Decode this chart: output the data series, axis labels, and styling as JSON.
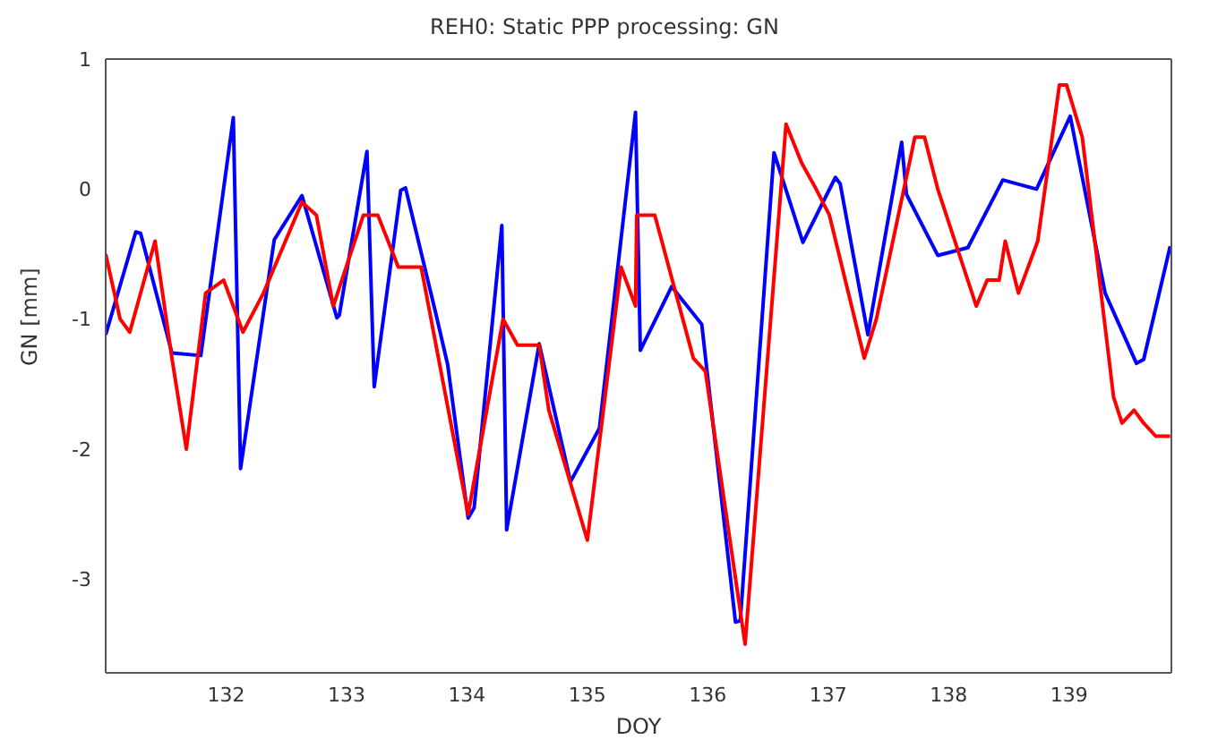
{
  "chart_data": {
    "type": "line",
    "title": "REH0: Static PPP processing: GN",
    "xlabel": "DOY",
    "ylabel": "GN [mm]",
    "xlim": [
      131,
      139.85
    ],
    "xticks": [
      132,
      133,
      134,
      135,
      136,
      137,
      138,
      139
    ],
    "ylim": [
      -3.72,
      1.0
    ],
    "yticks": [
      -3,
      -2,
      -1,
      0,
      1
    ],
    "grid": false,
    "legend": false,
    "marker": "none",
    "line_style": "solid",
    "series": [
      {
        "color": "#0000ff",
        "x": [
          131.0,
          131.25,
          131.29,
          131.55,
          131.79,
          132.06,
          132.12,
          132.4,
          132.63,
          132.92,
          132.94,
          133.17,
          133.23,
          133.45,
          133.49,
          133.74,
          133.84,
          134.01,
          134.06,
          134.29,
          134.33,
          134.6,
          134.86,
          135.1,
          135.4,
          135.44,
          135.7,
          135.95,
          136.23,
          136.27,
          136.55,
          136.79,
          137.06,
          137.1,
          137.33,
          137.61,
          137.65,
          137.91,
          138.16,
          138.45,
          138.73,
          139.01,
          139.3,
          139.56,
          139.62,
          139.84
        ],
        "values": [
          -1.12,
          -0.33,
          -0.34,
          -1.26,
          -1.28,
          0.55,
          -2.15,
          -0.39,
          -0.05,
          -0.99,
          -0.97,
          0.29,
          -1.52,
          -0.01,
          0.01,
          -0.95,
          -1.35,
          -2.53,
          -2.45,
          -0.28,
          -2.62,
          -1.19,
          -2.25,
          -1.84,
          0.59,
          -1.24,
          -0.75,
          -1.04,
          -3.33,
          -3.32,
          0.28,
          -0.41,
          0.09,
          0.04,
          -1.12,
          0.36,
          -0.04,
          -0.51,
          -0.45,
          0.07,
          0.0,
          0.56,
          -0.8,
          -1.34,
          -1.31,
          -0.44
        ]
      },
      {
        "color": "#ff0000",
        "x": [
          131.0,
          131.12,
          131.2,
          131.41,
          131.55,
          131.67,
          131.83,
          131.98,
          132.14,
          132.31,
          132.63,
          132.75,
          132.89,
          133.14,
          133.26,
          133.43,
          133.62,
          134.01,
          134.3,
          134.42,
          134.6,
          134.68,
          135.0,
          135.28,
          135.4,
          135.41,
          135.56,
          135.88,
          135.98,
          136.31,
          136.65,
          136.78,
          136.9,
          137.01,
          137.3,
          137.4,
          137.72,
          137.8,
          137.91,
          138.23,
          138.32,
          138.42,
          138.47,
          138.58,
          138.74,
          138.92,
          138.98,
          139.11,
          139.37,
          139.44,
          139.54,
          139.62,
          139.72,
          139.84
        ],
        "values": [
          -0.5,
          -1.0,
          -1.1,
          -0.4,
          -1.3,
          -2.0,
          -0.8,
          -0.7,
          -1.1,
          -0.8,
          -0.1,
          -0.2,
          -0.9,
          -0.2,
          -0.2,
          -0.6,
          -0.6,
          -2.5,
          -1.0,
          -1.2,
          -1.2,
          -1.7,
          -2.7,
          -0.6,
          -0.9,
          -0.2,
          -0.2,
          -1.3,
          -1.4,
          -3.5,
          0.5,
          0.2,
          0.0,
          -0.2,
          -1.3,
          -1.0,
          0.4,
          0.4,
          0.0,
          -0.9,
          -0.7,
          -0.7,
          -0.4,
          -0.8,
          -0.4,
          0.8,
          0.8,
          0.4,
          -1.6,
          -1.8,
          -1.7,
          -1.8,
          -1.9,
          -1.9
        ]
      }
    ]
  }
}
